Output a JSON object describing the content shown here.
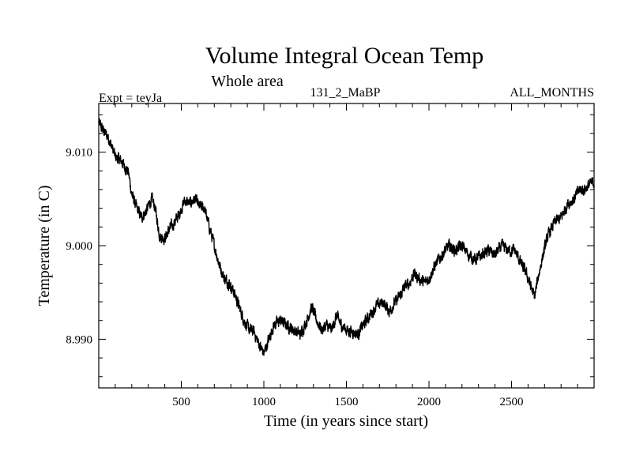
{
  "chart_data": {
    "type": "line",
    "title": "Volume Integral Ocean Temp",
    "subtitle": "Whole area",
    "header_left": "Expt = teyJa",
    "header_center": "131_2_MaBP",
    "header_right": "ALL_MONTHS",
    "xlabel": "Time (in years since start)",
    "ylabel": "Temperature (in C)",
    "xlim": [
      0,
      3000
    ],
    "ylim": [
      8.9848,
      9.0152
    ],
    "xticks": [
      500,
      1000,
      1500,
      2000,
      2500
    ],
    "xtick_labels": [
      "500",
      "1000",
      "1500",
      "2000",
      "2500"
    ],
    "yticks": [
      8.99,
      9.0,
      9.01
    ],
    "ytick_labels": [
      "8.990",
      "9.000",
      "9.010"
    ],
    "x_minor_step": 100,
    "y_minor_step": 0.002,
    "grid": false,
    "series": [
      {
        "name": "Volume Integral Ocean Temp",
        "color": "#000000",
        "noise": 0.0006,
        "x": [
          0,
          20,
          60,
          100,
          140,
          180,
          200,
          230,
          260,
          290,
          320,
          340,
          370,
          400,
          430,
          460,
          490,
          520,
          550,
          580,
          610,
          640,
          670,
          700,
          730,
          760,
          790,
          820,
          850,
          880,
          910,
          940,
          970,
          1000,
          1030,
          1060,
          1100,
          1140,
          1180,
          1220,
          1260,
          1290,
          1320,
          1350,
          1380,
          1410,
          1440,
          1470,
          1500,
          1540,
          1570,
          1600,
          1640,
          1680,
          1720,
          1760,
          1790,
          1820,
          1850,
          1880,
          1910,
          1940,
          1970,
          2000,
          2040,
          2080,
          2120,
          2160,
          2200,
          2240,
          2280,
          2320,
          2360,
          2400,
          2440,
          2480,
          2520,
          2560,
          2590,
          2620,
          2640,
          2660,
          2690,
          2720,
          2760,
          2800,
          2840,
          2880,
          2910,
          2940,
          2970,
          3000
        ],
        "values": [
          9.0132,
          9.0125,
          9.0115,
          9.0095,
          9.009,
          9.0078,
          9.0055,
          9.004,
          9.003,
          9.0038,
          9.005,
          9.0042,
          9.001,
          9.0008,
          9.0018,
          9.0025,
          9.0035,
          9.0048,
          9.0045,
          9.005,
          9.0042,
          9.004,
          9.002,
          9.0,
          8.998,
          8.9965,
          8.996,
          8.995,
          8.9935,
          8.992,
          8.991,
          8.9908,
          8.9895,
          8.9885,
          8.99,
          8.9915,
          8.992,
          8.9915,
          8.991,
          8.9905,
          8.992,
          8.9935,
          8.992,
          8.991,
          8.9915,
          8.991,
          8.9925,
          8.9915,
          8.991,
          8.9908,
          8.9905,
          8.9915,
          8.9925,
          8.9935,
          8.994,
          8.993,
          8.9938,
          8.9945,
          8.9955,
          8.996,
          8.997,
          8.9965,
          8.996,
          8.9965,
          8.998,
          8.999,
          9.0,
          8.9995,
          9.0,
          8.999,
          8.9985,
          8.999,
          8.9995,
          8.999,
          9.0,
          8.9995,
          8.9995,
          8.998,
          8.997,
          8.9955,
          8.9945,
          8.9965,
          8.999,
          9.001,
          9.0025,
          9.003,
          9.0045,
          9.005,
          9.006,
          9.006,
          9.0065,
          9.0068
        ]
      }
    ]
  }
}
